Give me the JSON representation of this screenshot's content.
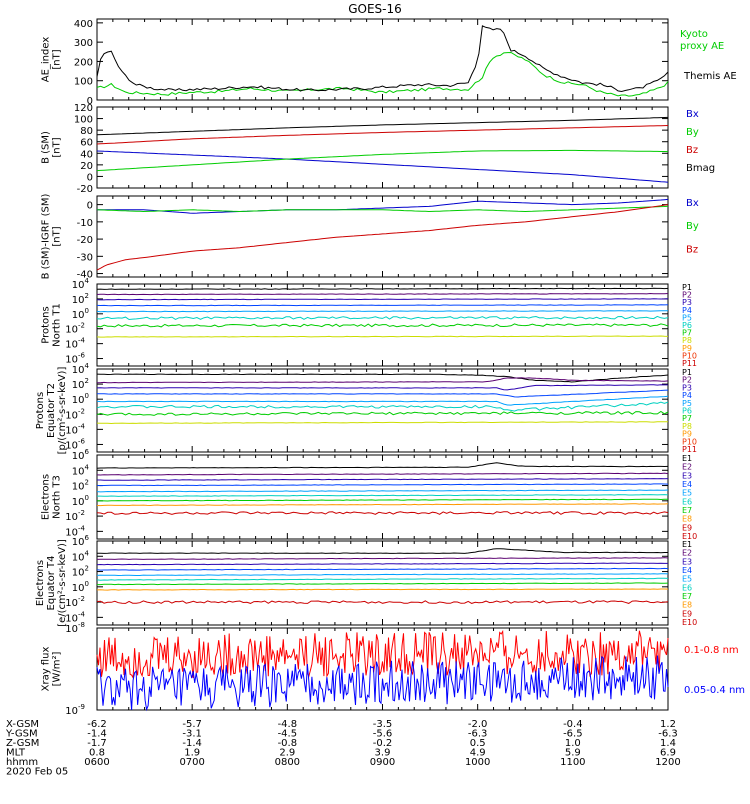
{
  "title": "GOES-16",
  "date_label": "2020 Feb 05",
  "ephemeris": {
    "rows": [
      {
        "label": "X-GSM",
        "values": [
          "-6.2",
          "-5.7",
          "-4.8",
          "-3.5",
          "-2.0",
          "-0.4",
          "1.2"
        ]
      },
      {
        "label": "Y-GSM",
        "values": [
          "-1.4",
          "-3.1",
          "-4.5",
          "-5.6",
          "-6.3",
          "-6.5",
          "-6.3"
        ]
      },
      {
        "label": "Z-GSM",
        "values": [
          "-1.7",
          "-1.4",
          "-0.8",
          "-0.2",
          "0.5",
          "1.0",
          "1.4"
        ]
      },
      {
        "label": "MLT",
        "values": [
          "0.8",
          "1.9",
          "2.9",
          "3.9",
          "4.9",
          "5.9",
          "6.9"
        ]
      },
      {
        "label": "hhmm",
        "values": [
          "0600",
          "0700",
          "0800",
          "0900",
          "1000",
          "1100",
          "1200"
        ]
      }
    ]
  },
  "chart_data": [
    {
      "type": "line",
      "panel": "ae",
      "ylabel": [
        "AE_index",
        "[nT]"
      ],
      "ylim": [
        0,
        420
      ],
      "yticks": [
        0,
        100,
        200,
        300,
        400
      ],
      "xlim": [
        6,
        12
      ],
      "series": [
        {
          "name": "Kyoto proxy AE",
          "color": "#00cc00",
          "x": [
            6.0,
            6.15,
            6.3,
            6.5,
            6.7,
            7.0,
            7.3,
            7.6,
            8.0,
            8.3,
            8.6,
            9.0,
            9.3,
            9.6,
            9.9,
            10.05,
            10.15,
            10.3,
            10.5,
            10.7,
            10.9,
            11.1,
            11.3,
            11.5,
            11.7,
            11.9,
            12.0
          ],
          "y": [
            60,
            80,
            40,
            35,
            30,
            40,
            45,
            60,
            45,
            55,
            60,
            40,
            50,
            60,
            55,
            120,
            220,
            250,
            210,
            130,
            90,
            80,
            40,
            20,
            25,
            60,
            90
          ]
        },
        {
          "name": "Themis AE",
          "color": "#000000",
          "x": [
            6.0,
            6.05,
            6.15,
            6.25,
            6.4,
            6.6,
            6.8,
            7.0,
            7.3,
            7.6,
            7.9,
            8.2,
            8.5,
            8.8,
            9.1,
            9.4,
            9.7,
            9.9,
            10.0,
            10.05,
            10.15,
            10.25,
            10.35,
            10.5,
            10.7,
            10.9,
            11.1,
            11.3,
            11.5,
            11.7,
            11.9,
            12.0
          ],
          "y": [
            120,
            240,
            250,
            150,
            80,
            60,
            50,
            55,
            60,
            70,
            60,
            50,
            55,
            60,
            70,
            80,
            75,
            90,
            200,
            390,
            360,
            370,
            260,
            230,
            160,
            120,
            90,
            80,
            50,
            60,
            100,
            140
          ]
        }
      ]
    },
    {
      "type": "line",
      "panel": "b_sm",
      "ylabel": [
        "B (SM)",
        "[nT]"
      ],
      "ylim": [
        -20,
        120
      ],
      "yticks": [
        -20,
        0,
        20,
        40,
        60,
        80,
        100,
        120
      ],
      "xlim": [
        6,
        12
      ],
      "series": [
        {
          "name": "Bx",
          "color": "#0000cc",
          "x": [
            6,
            7,
            8,
            9,
            10,
            11,
            12
          ],
          "y": [
            44,
            37,
            30,
            21,
            12,
            3,
            -10
          ]
        },
        {
          "name": "By",
          "color": "#00cc00",
          "x": [
            6,
            7,
            8,
            9,
            10,
            11,
            12
          ],
          "y": [
            10,
            20,
            30,
            38,
            44,
            45,
            43
          ]
        },
        {
          "name": "Bz",
          "color": "#cc0000",
          "x": [
            6,
            7,
            8,
            9,
            10,
            11,
            12
          ],
          "y": [
            56,
            65,
            71,
            76,
            80,
            84,
            88
          ]
        },
        {
          "name": "Bmag",
          "color": "#000000",
          "x": [
            6,
            7,
            8,
            9,
            10,
            11,
            12
          ],
          "y": [
            72,
            78,
            84,
            89,
            93,
            97,
            102
          ]
        }
      ]
    },
    {
      "type": "line",
      "panel": "b_diff",
      "ylabel": [
        "B (SM)-IGRF (SM)",
        "[nT]"
      ],
      "ylim": [
        -42,
        5
      ],
      "yticks": [
        -40,
        -30,
        -20,
        -10,
        0
      ],
      "xlim": [
        6,
        12
      ],
      "series": [
        {
          "name": "Bx",
          "color": "#0000cc",
          "x": [
            6,
            6.5,
            7,
            7.5,
            8,
            8.5,
            9,
            9.5,
            10,
            10.5,
            11,
            11.5,
            12
          ],
          "y": [
            -3,
            -3,
            -5,
            -4,
            -3,
            -3,
            -2,
            -1,
            2,
            1,
            0,
            1,
            3
          ]
        },
        {
          "name": "By",
          "color": "#00cc00",
          "x": [
            6,
            6.5,
            7,
            7.5,
            8,
            8.5,
            9,
            9.5,
            10,
            10.5,
            11,
            11.5,
            12
          ],
          "y": [
            -3,
            -4,
            -3,
            -4,
            -3,
            -3,
            -3,
            -4,
            -3,
            -4,
            -3,
            -2,
            -1
          ]
        },
        {
          "name": "Bz",
          "color": "#cc0000",
          "x": [
            6,
            6.1,
            6.3,
            6.6,
            7,
            7.5,
            8,
            8.5,
            9,
            9.5,
            10,
            10.5,
            11,
            11.5,
            12
          ],
          "y": [
            -38,
            -35,
            -32,
            -30,
            -27,
            -25,
            -22,
            -19,
            -17,
            -15,
            -12,
            -10,
            -7,
            -4,
            0
          ]
        }
      ]
    },
    {
      "type": "line",
      "panel": "protons_t1",
      "log": true,
      "ylabel": [
        "Protons",
        "North T1"
      ],
      "ylim_exp": [
        -7,
        4
      ],
      "ytick_exps": [
        -6,
        -4,
        -2,
        0,
        2,
        4
      ],
      "xlim": [
        6,
        12
      ],
      "series": [
        {
          "name": "P1",
          "color": "#000000",
          "x": [
            6,
            12
          ],
          "y_exp": [
            3.3,
            3.4
          ]
        },
        {
          "name": "P2",
          "color": "#5a0070",
          "x": [
            6,
            12
          ],
          "y_exp": [
            2.6,
            2.7
          ]
        },
        {
          "name": "P3",
          "color": "#2a00b0",
          "x": [
            6,
            12
          ],
          "y_exp": [
            1.9,
            2.0
          ]
        },
        {
          "name": "P4",
          "color": "#0044ff",
          "x": [
            6,
            12
          ],
          "y_exp": [
            1.1,
            1.2
          ]
        },
        {
          "name": "P5",
          "color": "#00a0ff",
          "x": [
            6,
            12
          ],
          "y_exp": [
            0.3,
            0.4
          ]
        },
        {
          "name": "P6",
          "color": "#00d0c0",
          "x": [
            6,
            12
          ],
          "y_exp": [
            -0.6,
            -0.5
          ]
        },
        {
          "name": "P7",
          "color": "#00cc00",
          "x": [
            6,
            12
          ],
          "y_exp": [
            -1.6,
            -1.5
          ]
        },
        {
          "name": "P8",
          "color": "#ccdd00",
          "x": [
            6,
            12
          ],
          "y_exp": [
            -3.1,
            -3.0
          ]
        },
        {
          "name": "P9",
          "color": "#ff9900",
          "x": [],
          "y_exp": []
        },
        {
          "name": "P10",
          "color": "#ee3300",
          "x": [],
          "y_exp": []
        },
        {
          "name": "P11",
          "color": "#cc0000",
          "x": [],
          "y_exp": []
        }
      ]
    },
    {
      "type": "line",
      "panel": "protons_t2",
      "log": true,
      "ylabel": [
        "Protons",
        "Equator T2",
        "[p/(cm²-s-sr-keV)]"
      ],
      "ylim_exp": [
        -7,
        4
      ],
      "ytick_exps": [
        -6,
        -4,
        -2,
        0,
        2,
        4
      ],
      "xlim": [
        6,
        12
      ],
      "series": [
        {
          "name": "P1",
          "color": "#000000",
          "x": [
            6,
            9.5,
            10.0,
            10.3,
            10.6,
            11.0,
            11.5,
            12
          ],
          "y_exp": [
            3.3,
            3.3,
            3.2,
            3.0,
            2.5,
            2.3,
            2.8,
            3.2
          ]
        },
        {
          "name": "P2",
          "color": "#5a0070",
          "x": [
            6,
            9.5,
            10.1,
            10.3,
            10.6,
            11,
            12
          ],
          "y_exp": [
            2.2,
            2.3,
            2.3,
            2.8,
            2.8,
            2.5,
            2.4
          ]
        },
        {
          "name": "P3",
          "color": "#2a00b0",
          "x": [
            6,
            10.2,
            10.3,
            10.6,
            12
          ],
          "y_exp": [
            1.5,
            1.5,
            1.2,
            1.8,
            1.9
          ]
        },
        {
          "name": "P4",
          "color": "#0044ff",
          "x": [
            6,
            10.2,
            10.4,
            12
          ],
          "y_exp": [
            0.7,
            0.7,
            0.3,
            1.2
          ]
        },
        {
          "name": "P5",
          "color": "#00a0ff",
          "x": [
            6,
            10.2,
            10.3,
            12
          ],
          "y_exp": [
            -0.3,
            -0.3,
            -0.8,
            0.4
          ]
        },
        {
          "name": "P6",
          "color": "#00d0c0",
          "x": [
            6,
            10.2,
            10.3,
            12
          ],
          "y_exp": [
            -1.0,
            -1.0,
            -1.5,
            -0.5
          ]
        },
        {
          "name": "P7",
          "color": "#00cc00",
          "x": [
            6,
            12
          ],
          "y_exp": [
            -2.0,
            -1.8
          ]
        },
        {
          "name": "P8",
          "color": "#ccdd00",
          "x": [
            6,
            12
          ],
          "y_exp": [
            -3.2,
            -3.0
          ]
        },
        {
          "name": "P9",
          "color": "#ff9900",
          "x": [],
          "y_exp": []
        },
        {
          "name": "P10",
          "color": "#ee3300",
          "x": [],
          "y_exp": []
        },
        {
          "name": "P11",
          "color": "#cc0000",
          "x": [],
          "y_exp": []
        }
      ]
    },
    {
      "type": "line",
      "panel": "electrons_t3",
      "log": true,
      "ylabel": [
        "Electrons",
        "North T3"
      ],
      "ylim_exp": [
        -5,
        6
      ],
      "ytick_exps": [
        -4,
        -2,
        0,
        2,
        4,
        6
      ],
      "xlim": [
        6,
        12
      ],
      "series": [
        {
          "name": "E1",
          "color": "#000000",
          "x": [
            6,
            9.9,
            10.2,
            10.4,
            10.6,
            12
          ],
          "y_exp": [
            4.3,
            4.4,
            5.0,
            4.6,
            4.5,
            4.5
          ]
        },
        {
          "name": "E2",
          "color": "#5a0070",
          "x": [
            6,
            12
          ],
          "y_exp": [
            3.4,
            3.6
          ]
        },
        {
          "name": "E3",
          "color": "#2a00b0",
          "x": [
            6,
            12
          ],
          "y_exp": [
            2.7,
            2.9
          ]
        },
        {
          "name": "E4",
          "color": "#0044ff",
          "x": [
            6,
            12
          ],
          "y_exp": [
            2.0,
            2.2
          ]
        },
        {
          "name": "E5",
          "color": "#00a0ff",
          "x": [
            6,
            12
          ],
          "y_exp": [
            1.2,
            1.4
          ]
        },
        {
          "name": "E6",
          "color": "#00d0c0",
          "x": [
            6,
            12
          ],
          "y_exp": [
            0.6,
            0.8
          ]
        },
        {
          "name": "E7",
          "color": "#00cc00",
          "x": [
            6,
            12
          ],
          "y_exp": [
            0.0,
            0.2
          ]
        },
        {
          "name": "E8",
          "color": "#ff9900",
          "x": [
            6,
            12
          ],
          "y_exp": [
            -0.6,
            -0.4
          ]
        },
        {
          "name": "E9",
          "color": "#cc0000",
          "x": [
            6,
            12
          ],
          "y_exp": [
            -1.6,
            -1.6
          ]
        },
        {
          "name": "E10",
          "color": "#cc0000",
          "x": [],
          "y_exp": []
        }
      ]
    },
    {
      "type": "line",
      "panel": "electrons_t4",
      "log": true,
      "ylabel": [
        "Electrons",
        "Equator T4",
        "[e/(cm²-s-sr-keV)]"
      ],
      "ylim_exp": [
        -5,
        6
      ],
      "ytick_exps": [
        -4,
        -2,
        0,
        2,
        4,
        6
      ],
      "xlim": [
        6,
        12
      ],
      "series": [
        {
          "name": "E1",
          "color": "#000000",
          "x": [
            6,
            9.9,
            10.2,
            10.5,
            10.9,
            12
          ],
          "y_exp": [
            4.4,
            4.4,
            5.0,
            4.8,
            4.5,
            4.5
          ]
        },
        {
          "name": "E2",
          "color": "#5a0070",
          "x": [
            6,
            12
          ],
          "y_exp": [
            3.6,
            3.8
          ]
        },
        {
          "name": "E3",
          "color": "#2a00b0",
          "x": [
            6,
            12
          ],
          "y_exp": [
            2.9,
            3.1
          ]
        },
        {
          "name": "E4",
          "color": "#0044ff",
          "x": [
            6,
            12
          ],
          "y_exp": [
            2.2,
            2.4
          ]
        },
        {
          "name": "E5",
          "color": "#00a0ff",
          "x": [
            6,
            12
          ],
          "y_exp": [
            1.5,
            1.7
          ]
        },
        {
          "name": "E6",
          "color": "#00d0c0",
          "x": [
            6,
            12
          ],
          "y_exp": [
            0.9,
            1.1
          ]
        },
        {
          "name": "E7",
          "color": "#00cc00",
          "x": [
            6,
            12
          ],
          "y_exp": [
            0.3,
            0.5
          ]
        },
        {
          "name": "E8",
          "color": "#ff9900",
          "x": [
            6,
            12
          ],
          "y_exp": [
            -0.4,
            -0.3
          ]
        },
        {
          "name": "E9",
          "color": "#cc0000",
          "x": [
            6,
            12
          ],
          "y_exp": [
            -2.0,
            -2.0
          ]
        },
        {
          "name": "E10",
          "color": "#cc0000",
          "x": [],
          "y_exp": []
        }
      ]
    },
    {
      "type": "line",
      "panel": "xray",
      "log": true,
      "ylabel": [
        "Xray flux",
        "[W/m²]"
      ],
      "ylim_exp": [
        -9,
        -8
      ],
      "ytick_exps": [
        -9,
        -8
      ],
      "xlim": [
        6,
        12
      ],
      "series": [
        {
          "name": "0.1-0.8 nm",
          "color": "#ff0000",
          "x": [
            6,
            12
          ],
          "y_exp": [
            -8.35,
            -8.3
          ]
        },
        {
          "name": "0.05-0.4 nm",
          "color": "#0000ff",
          "x": [
            6,
            12
          ],
          "y_exp": [
            -8.75,
            -8.6
          ]
        }
      ]
    }
  ]
}
